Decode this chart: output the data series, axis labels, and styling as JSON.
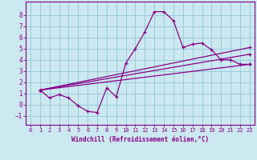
{
  "title": "",
  "xlabel": "Windchill (Refroidissement éolien,°C)",
  "background_color": "#cce8f0",
  "grid_color": "#99ccdd",
  "line_color": "#880088",
  "xlim": [
    -0.5,
    23.5
  ],
  "ylim": [
    -1.8,
    9.2
  ],
  "xticks": [
    0,
    1,
    2,
    3,
    4,
    5,
    6,
    7,
    8,
    9,
    10,
    11,
    12,
    13,
    14,
    15,
    16,
    17,
    18,
    19,
    20,
    21,
    22,
    23
  ],
  "yticks": [
    -1,
    0,
    1,
    2,
    3,
    4,
    5,
    6,
    7,
    8
  ],
  "series1_x": [
    1,
    2,
    3,
    4,
    5,
    6,
    7,
    8,
    9,
    10,
    11,
    12,
    13,
    14,
    15,
    16,
    17,
    18,
    19,
    20,
    21,
    22,
    23
  ],
  "series1_y": [
    1.3,
    0.6,
    0.9,
    0.6,
    -0.1,
    -0.6,
    -0.7,
    1.5,
    0.7,
    3.7,
    5.0,
    6.5,
    8.3,
    8.3,
    7.5,
    5.1,
    5.4,
    5.5,
    4.9,
    4.0,
    4.0,
    3.6,
    3.6
  ],
  "series2_x": [
    1,
    23
  ],
  "series2_y": [
    1.3,
    3.6
  ],
  "series3_x": [
    1,
    23
  ],
  "series3_y": [
    1.3,
    4.5
  ],
  "series4_x": [
    1,
    23
  ],
  "series4_y": [
    1.3,
    5.1
  ]
}
